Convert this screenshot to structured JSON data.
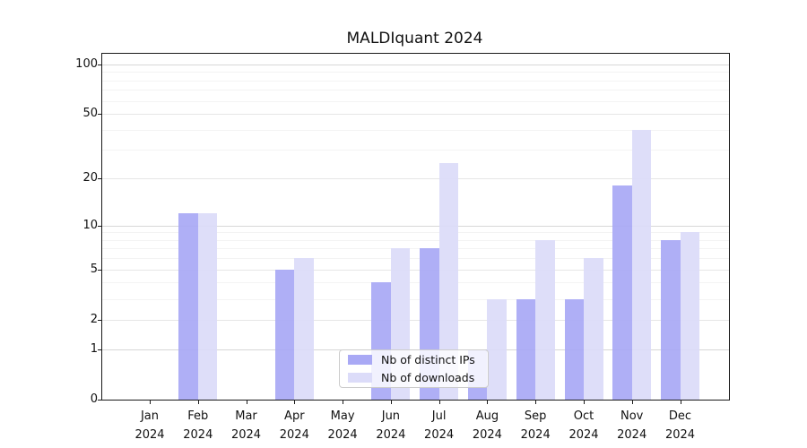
{
  "title": "MALDIquant 2024",
  "chart_data": {
    "type": "bar",
    "title": "MALDIquant 2024",
    "categories": [
      "Jan",
      "Feb",
      "Mar",
      "Apr",
      "May",
      "Jun",
      "Jul",
      "Aug",
      "Sep",
      "Oct",
      "Nov",
      "Dec"
    ],
    "year_label": "2024",
    "series": [
      {
        "name": "Nb of distinct IPs",
        "color": "#a9a9f5",
        "values": [
          0,
          12,
          0,
          5,
          0,
          4,
          7,
          1,
          3,
          3,
          18,
          8
        ]
      },
      {
        "name": "Nb of downloads",
        "color": "#dcdcf9",
        "values": [
          0,
          12,
          0,
          6,
          0,
          7,
          25,
          3,
          8,
          6,
          40,
          9
        ]
      }
    ],
    "yscale": "log(v+1)",
    "yticks": [
      0,
      1,
      2,
      5,
      10,
      20,
      50,
      100
    ],
    "yticks_major": [
      1,
      10,
      100
    ],
    "yticks_minor": [
      3,
      4,
      6,
      7,
      8,
      9,
      30,
      40,
      60,
      70,
      80,
      90
    ],
    "ylim": [
      0,
      116
    ],
    "xlabel": "",
    "ylabel": "",
    "grid": true,
    "legend_position": "bottom-center"
  },
  "colors": {
    "background": "#ffffff",
    "spine": "#1a1a1a",
    "text": "#111111",
    "grid_major": "#d7d7d7",
    "grid_mid": "#e6e6e6",
    "grid_minor": "#f3f3f3",
    "legend_border": "#cccccc"
  }
}
